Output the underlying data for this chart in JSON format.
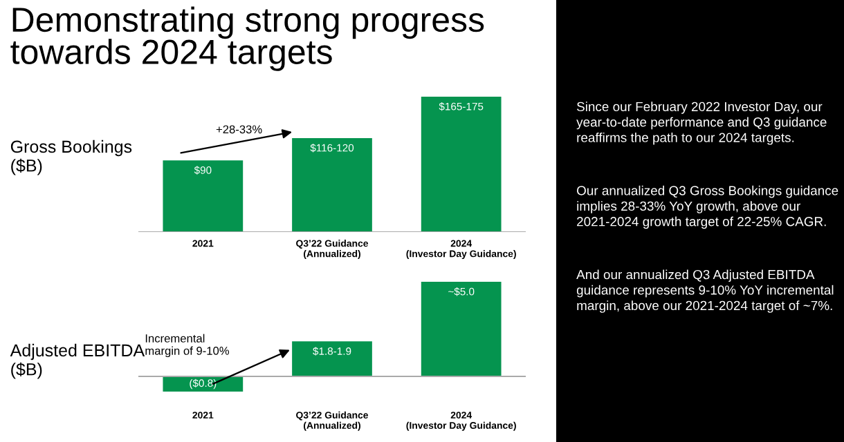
{
  "chart_data": [
    {
      "type": "bar",
      "title": "Demonstrating strong progress\ntowards 2024 targets",
      "ylabel": "Gross Bookings ($B)",
      "categories": [
        "2021",
        "Q3’22 Guidance\n(Annualized)",
        "2024\n(Investor Day Guidance)"
      ],
      "values": [
        90,
        118,
        170
      ],
      "color": "#05944f",
      "tick_labels": "x",
      "value_labels": [
        "$90",
        "$116-120",
        "$165-175"
      ],
      "annotations": [
        "+28-33%"
      ],
      "grid": false,
      "legend": false
    },
    {
      "type": "bar",
      "ylabel": "Adjusted EBITDA ($B)",
      "categories": [
        "2021",
        "Q3’22 Guidance\n(Annualized)",
        "2024\n(Investor Day Guidance)"
      ],
      "values": [
        -0.8,
        1.85,
        5.0
      ],
      "color": "#05944f",
      "tick_labels": "x",
      "value_labels": [
        "($0.8)",
        "$1.8-1.9",
        "~$5.0"
      ],
      "annotations": [
        "Incremental\nmargin of 9-10%"
      ],
      "grid": false,
      "legend": false
    },
    {
      "type": "other",
      "annotations": [
        "Since our February 2022 Investor Day, our year-to-date performance and Q3 guidance reaffirms the path to our 2024 targets.",
        "Our annualized Q3 Gross Bookings guidance implies 28-33% YoY growth, above our 2021-2024 growth target of 22-25% CAGR.",
        "And our annualized Q3 Adjusted EBITDA guidance represents 9-10% YoY incremental margin, above our 2021-2024 target of ~7%."
      ]
    }
  ]
}
